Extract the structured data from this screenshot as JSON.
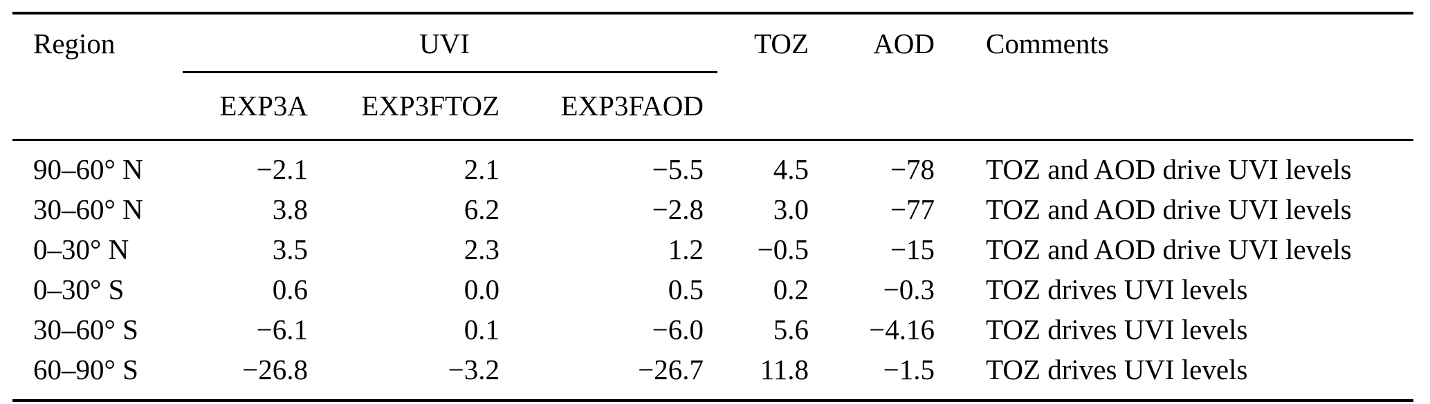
{
  "page": {
    "background_color": "#ffffff",
    "text_color": "#000000"
  },
  "table": {
    "header": {
      "region": "Region",
      "uvi_group": "UVI",
      "uvi_subcolumns": [
        "EXP3A",
        "EXP3FTOZ",
        "EXP3FAOD"
      ],
      "toz": "TOZ",
      "aod": "AOD",
      "comments": "Comments"
    },
    "rows": [
      {
        "region": "90–60° N",
        "uvi_exp3a": "−2.1",
        "uvi_exp3ftoz": "2.1",
        "uvi_exp3faod": "−5.5",
        "toz": "4.5",
        "aod": "−78",
        "comments": "TOZ and AOD drive UVI levels"
      },
      {
        "region": "30–60° N",
        "uvi_exp3a": "3.8",
        "uvi_exp3ftoz": "6.2",
        "uvi_exp3faod": "−2.8",
        "toz": "3.0",
        "aod": "−77",
        "comments": "TOZ and AOD drive UVI levels"
      },
      {
        "region": "0–30° N",
        "uvi_exp3a": "3.5",
        "uvi_exp3ftoz": "2.3",
        "uvi_exp3faod": "1.2",
        "toz": "−0.5",
        "aod": "−15",
        "comments": "TOZ and AOD drive UVI levels"
      },
      {
        "region": "0–30° S",
        "uvi_exp3a": "0.6",
        "uvi_exp3ftoz": "0.0",
        "uvi_exp3faod": "0.5",
        "toz": "0.2",
        "aod": "−0.3",
        "comments": "TOZ drives UVI levels"
      },
      {
        "region": "30–60° S",
        "uvi_exp3a": "−6.1",
        "uvi_exp3ftoz": "0.1",
        "uvi_exp3faod": "−6.0",
        "toz": "5.6",
        "aod": "−4.16",
        "comments": "TOZ drives UVI levels"
      },
      {
        "region": "60–90° S",
        "uvi_exp3a": "−26.8",
        "uvi_exp3ftoz": "−3.2",
        "uvi_exp3faod": "−26.7",
        "toz": "11.8",
        "aod": "−1.5",
        "comments": "TOZ drives UVI levels"
      }
    ]
  }
}
